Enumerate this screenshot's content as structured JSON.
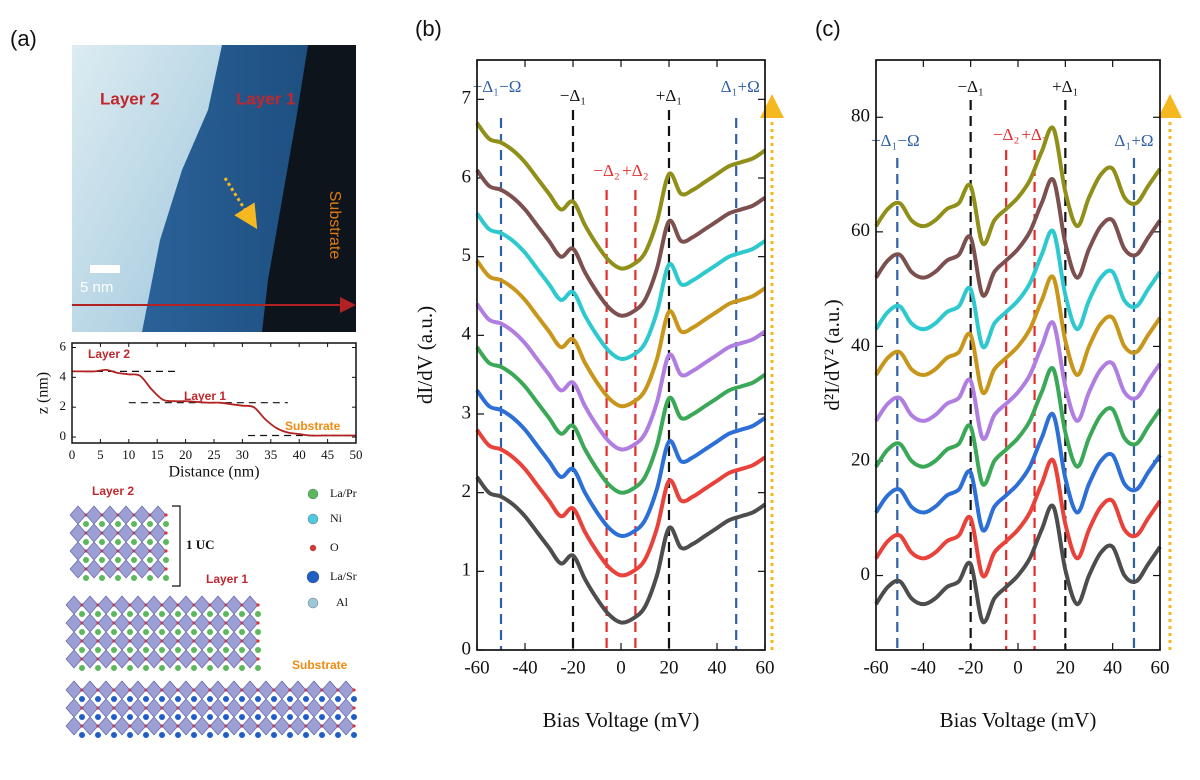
{
  "panel_labels": [
    "(a)",
    "(b)",
    "(c)"
  ],
  "stm_image": {
    "layer2": "Layer 2",
    "layer1": "Layer 1",
    "substrate": "Substrate",
    "scale_bar": "5 nm"
  },
  "structure": {
    "layer2": "Layer 2",
    "layer1": "Layer 1",
    "substrate": "Substrate",
    "unit_cell": "1 UC",
    "legend": [
      "La/Pr",
      "Ni",
      "O",
      "La/Sr",
      "Al"
    ]
  },
  "chart_data": [
    {
      "type": "line",
      "xlabel": "Distance (nm)",
      "ylabel": "z (nm)",
      "x": [
        0,
        2,
        4,
        6,
        8,
        10,
        12,
        14,
        16,
        18,
        20,
        22,
        24,
        26,
        28,
        30,
        32,
        34,
        36,
        38,
        40,
        42,
        44,
        46,
        48,
        50
      ],
      "series": [
        {
          "color": "#b22222",
          "values": [
            4.4,
            4.4,
            4.4,
            4.5,
            4.3,
            4.2,
            4.1,
            3.2,
            2.5,
            2.4,
            2.4,
            2.35,
            2.3,
            2.3,
            2.2,
            2.1,
            2.0,
            1.2,
            0.6,
            0.3,
            0.2,
            0.1,
            0.1,
            0.1,
            0.1,
            0.1
          ]
        }
      ],
      "guides": [
        {
          "y": 4.4,
          "from": 0,
          "to": 19
        },
        {
          "y": 2.3,
          "from": 10,
          "to": 38
        },
        {
          "y": 0.1,
          "from": 31,
          "to": 50
        }
      ],
      "annotations": [
        "Layer 2",
        "Layer 1",
        "Substrate"
      ],
      "xlim": [
        0,
        50
      ],
      "ylim": [
        -0.4,
        6.3
      ],
      "xticks": [
        0,
        5,
        10,
        15,
        20,
        25,
        30,
        35,
        40,
        45,
        50
      ],
      "yticks": [
        0,
        2,
        4,
        6
      ]
    },
    {
      "type": "line",
      "xlabel": "Bias Voltage (mV)",
      "ylabel": "dI/dV  (a.u.)",
      "x": [
        -60,
        -55,
        -50,
        -45,
        -40,
        -35,
        -30,
        -25,
        -20,
        -15,
        -10,
        -5,
        0,
        5,
        10,
        15,
        20,
        25,
        30,
        35,
        40,
        45,
        50,
        55,
        60
      ],
      "series": [
        {
          "color": "#4d4d4d",
          "values": [
            2.2,
            2.0,
            1.95,
            1.85,
            1.7,
            1.5,
            1.3,
            1.1,
            1.2,
            0.9,
            0.65,
            0.45,
            0.35,
            0.4,
            0.55,
            0.95,
            1.55,
            1.3,
            1.35,
            1.45,
            1.55,
            1.65,
            1.7,
            1.75,
            1.85
          ]
        },
        {
          "color": "#e8423a",
          "values": [
            2.8,
            2.6,
            2.55,
            2.45,
            2.3,
            2.1,
            1.9,
            1.7,
            1.8,
            1.5,
            1.25,
            1.05,
            0.95,
            1.0,
            1.15,
            1.55,
            2.15,
            1.9,
            1.95,
            2.05,
            2.15,
            2.25,
            2.3,
            2.35,
            2.45
          ]
        },
        {
          "color": "#2c6fd6",
          "values": [
            3.3,
            3.1,
            3.05,
            2.95,
            2.8,
            2.6,
            2.4,
            2.2,
            2.3,
            2.0,
            1.75,
            1.55,
            1.45,
            1.5,
            1.65,
            2.05,
            2.65,
            2.4,
            2.45,
            2.55,
            2.65,
            2.75,
            2.8,
            2.85,
            2.95
          ]
        },
        {
          "color": "#3aa856",
          "values": [
            3.85,
            3.65,
            3.6,
            3.5,
            3.35,
            3.15,
            2.95,
            2.75,
            2.85,
            2.55,
            2.3,
            2.1,
            2.0,
            2.05,
            2.2,
            2.6,
            3.2,
            2.95,
            3.0,
            3.1,
            3.2,
            3.3,
            3.35,
            3.4,
            3.5
          ]
        },
        {
          "color": "#b07ee0",
          "values": [
            4.4,
            4.2,
            4.15,
            4.05,
            3.9,
            3.7,
            3.5,
            3.3,
            3.4,
            3.1,
            2.85,
            2.65,
            2.55,
            2.6,
            2.75,
            3.15,
            3.75,
            3.5,
            3.55,
            3.65,
            3.75,
            3.85,
            3.9,
            3.95,
            4.05
          ]
        },
        {
          "color": "#c8961a",
          "values": [
            4.95,
            4.75,
            4.7,
            4.6,
            4.45,
            4.25,
            4.05,
            3.85,
            3.95,
            3.65,
            3.4,
            3.2,
            3.1,
            3.15,
            3.3,
            3.7,
            4.3,
            4.05,
            4.1,
            4.2,
            4.3,
            4.4,
            4.45,
            4.5,
            4.6
          ]
        },
        {
          "color": "#2ec9cf",
          "values": [
            5.55,
            5.35,
            5.3,
            5.2,
            5.05,
            4.85,
            4.65,
            4.45,
            4.55,
            4.25,
            4.0,
            3.8,
            3.7,
            3.75,
            3.9,
            4.3,
            4.9,
            4.65,
            4.7,
            4.8,
            4.9,
            5.0,
            5.05,
            5.1,
            5.2
          ]
        },
        {
          "color": "#7d5050",
          "values": [
            6.1,
            5.9,
            5.85,
            5.75,
            5.6,
            5.4,
            5.2,
            5.0,
            5.1,
            4.8,
            4.55,
            4.35,
            4.25,
            4.3,
            4.45,
            4.85,
            5.45,
            5.2,
            5.25,
            5.35,
            5.45,
            5.55,
            5.6,
            5.65,
            5.75
          ]
        },
        {
          "color": "#8f8f1a",
          "values": [
            6.7,
            6.5,
            6.45,
            6.35,
            6.2,
            6.0,
            5.8,
            5.6,
            5.7,
            5.4,
            5.15,
            4.95,
            4.85,
            4.9,
            5.05,
            5.45,
            6.05,
            5.8,
            5.85,
            5.95,
            6.05,
            6.15,
            6.2,
            6.25,
            6.35
          ]
        }
      ],
      "markers": [
        {
          "x": -50,
          "label": "−Δ₁−Ω",
          "color": "#2e5fa8"
        },
        {
          "x": -20,
          "label": "−Δ₁",
          "color": "#111111"
        },
        {
          "x": -6,
          "label": "−Δ₂",
          "color": "#e52b2b"
        },
        {
          "x": 6,
          "label": "+Δ₂",
          "color": "#e52b2b"
        },
        {
          "x": 20,
          "label": "+Δ₁",
          "color": "#111111"
        },
        {
          "x": 48,
          "label": "Δ₁+Ω",
          "color": "#2e5fa8"
        }
      ],
      "xlim": [
        -60,
        60
      ],
      "ylim": [
        0,
        7.5
      ],
      "xticks": [
        -60,
        -40,
        -20,
        0,
        20,
        40,
        60
      ],
      "yticks": [
        0,
        1,
        2,
        3,
        4,
        5,
        6,
        7
      ]
    },
    {
      "type": "line",
      "xlabel": "Bias Voltage (mV)",
      "ylabel": "d²I/dV²  (a.u.)",
      "x": [
        -60,
        -55,
        -50,
        -45,
        -40,
        -35,
        -30,
        -25,
        -20,
        -15,
        -10,
        -5,
        0,
        5,
        10,
        15,
        20,
        25,
        30,
        35,
        40,
        45,
        50,
        55,
        60
      ],
      "series": [
        {
          "color": "#4d4d4d",
          "values": [
            -5,
            -2,
            -1,
            -4,
            -5,
            -4,
            -2,
            -1,
            2,
            -8,
            -4,
            -2,
            0,
            3,
            8,
            12,
            1,
            -5,
            0,
            4,
            5,
            0,
            -1,
            2,
            5
          ]
        },
        {
          "color": "#e8423a",
          "values": [
            3,
            6,
            7,
            4,
            3,
            4,
            6,
            7,
            10,
            0,
            4,
            6,
            8,
            11,
            16,
            20,
            9,
            3,
            8,
            12,
            13,
            8,
            7,
            10,
            13
          ]
        },
        {
          "color": "#2c6fd6",
          "values": [
            11,
            14,
            15,
            12,
            11,
            12,
            14,
            15,
            18,
            8,
            12,
            14,
            16,
            19,
            24,
            28,
            17,
            11,
            16,
            20,
            21,
            16,
            15,
            18,
            21
          ]
        },
        {
          "color": "#3aa856",
          "values": [
            19,
            22,
            23,
            20,
            19,
            20,
            22,
            23,
            26,
            16,
            20,
            22,
            24,
            27,
            32,
            36,
            25,
            19,
            24,
            28,
            29,
            24,
            23,
            26,
            29
          ]
        },
        {
          "color": "#b07ee0",
          "values": [
            27,
            30,
            31,
            28,
            27,
            28,
            30,
            31,
            34,
            24,
            28,
            30,
            32,
            35,
            40,
            44,
            33,
            27,
            32,
            36,
            37,
            32,
            31,
            34,
            37
          ]
        },
        {
          "color": "#c8961a",
          "values": [
            35,
            38,
            39,
            36,
            35,
            36,
            38,
            39,
            42,
            32,
            36,
            38,
            40,
            43,
            48,
            52,
            41,
            35,
            40,
            44,
            45,
            40,
            39,
            42,
            45
          ]
        },
        {
          "color": "#2ec9cf",
          "values": [
            43,
            46,
            47,
            44,
            43,
            44,
            46,
            47,
            50,
            40,
            44,
            46,
            48,
            51,
            56,
            60,
            49,
            43,
            48,
            52,
            53,
            48,
            47,
            50,
            53
          ]
        },
        {
          "color": "#7d5050",
          "values": [
            52,
            55,
            56,
            53,
            52,
            53,
            55,
            56,
            59,
            49,
            53,
            55,
            57,
            60,
            65,
            69,
            58,
            52,
            57,
            61,
            62,
            57,
            56,
            59,
            62
          ]
        },
        {
          "color": "#8f8f1a",
          "values": [
            61,
            64,
            65,
            62,
            61,
            62,
            64,
            65,
            68,
            58,
            62,
            64,
            66,
            69,
            74,
            78,
            67,
            61,
            66,
            70,
            71,
            66,
            65,
            68,
            71
          ]
        }
      ],
      "markers": [
        {
          "x": -51,
          "label": "−Δ₁−Ω",
          "color": "#2e5fa8"
        },
        {
          "x": -20,
          "label": "−Δ₁",
          "color": "#111111"
        },
        {
          "x": -5,
          "label": "−Δ₂",
          "color": "#e52b2b"
        },
        {
          "x": 7,
          "label": "+Δ₂",
          "color": "#e52b2b"
        },
        {
          "x": 20,
          "label": "+Δ₁",
          "color": "#111111"
        },
        {
          "x": 49,
          "label": "Δ₁+Ω",
          "color": "#2e5fa8"
        }
      ],
      "xlim": [
        -60,
        60
      ],
      "ylim": [
        -13,
        90
      ],
      "xticks": [
        -60,
        -40,
        -20,
        0,
        20,
        40,
        60
      ],
      "yticks": [
        0,
        20,
        40,
        60,
        80
      ]
    }
  ]
}
